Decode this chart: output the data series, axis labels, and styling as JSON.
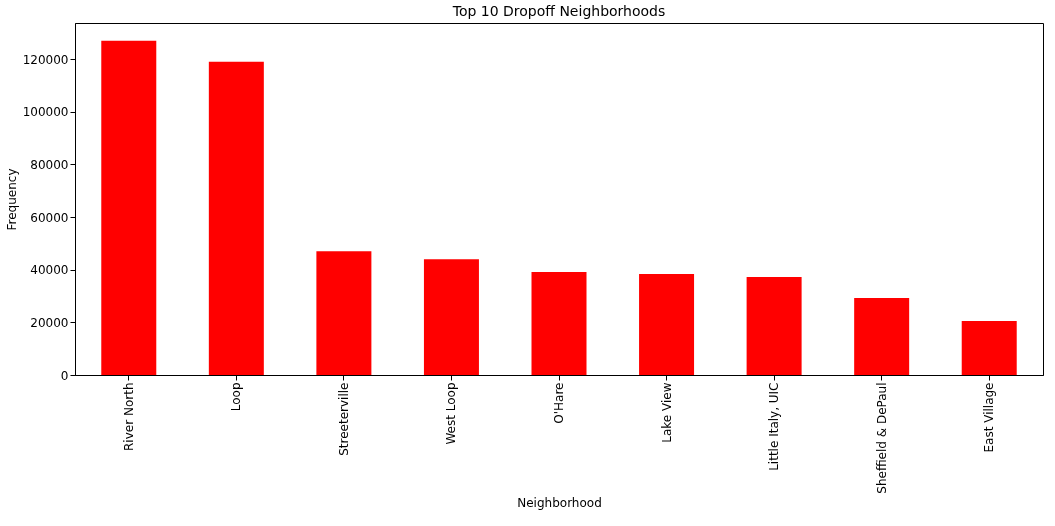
{
  "chart_data": {
    "type": "bar",
    "title": "Top 10 Dropoff Neighborhoods",
    "xlabel": "Neighborhood",
    "ylabel": "Frequency",
    "categories": [
      "River North",
      "Loop",
      "Streeterville",
      "West Loop",
      "O'Hare",
      "Lake View",
      "Little Italy, UIC",
      "Sheffield & DePaul",
      "East Village"
    ],
    "values": [
      127000,
      119000,
      47000,
      44000,
      39100,
      38400,
      37200,
      29200,
      20500
    ],
    "color": "#ff0000",
    "ylim": [
      0,
      133700
    ],
    "yticks": [
      0,
      20000,
      40000,
      60000,
      80000,
      100000,
      120000
    ],
    "grid": false
  }
}
